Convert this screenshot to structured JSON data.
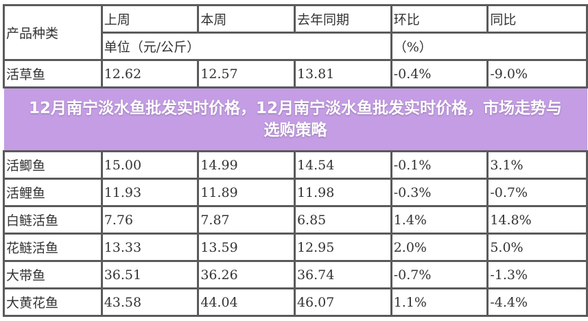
{
  "header": {
    "product": "产品种类",
    "columns": [
      "上周",
      "本周",
      "去年同期",
      "环比",
      "同比"
    ],
    "unit_price": "单位（元/公斤）",
    "unit_pct": "（%）"
  },
  "rows": [
    {
      "name": "活草鱼",
      "values": [
        "12.62",
        "12.57",
        "13.81",
        "-0.4%",
        "-9.0%"
      ]
    },
    {
      "name": "活鲫鱼",
      "values": [
        "15.00",
        "14.99",
        "14.54",
        "-0.1%",
        "3.1%"
      ]
    },
    {
      "name": "活鲤鱼",
      "values": [
        "11.93",
        "11.89",
        "11.98",
        "-0.3%",
        "-0.7%"
      ]
    },
    {
      "name": "白鲢活鱼",
      "values": [
        "7.76",
        "7.87",
        "6.85",
        "1.4%",
        "14.8%"
      ]
    },
    {
      "name": "花鲢活鱼",
      "values": [
        "13.33",
        "13.59",
        "12.95",
        "2.0%",
        "5.0%"
      ]
    },
    {
      "name": "大带鱼",
      "values": [
        "36.51",
        "36.26",
        "36.74",
        "-0.7%",
        "-1.3%"
      ]
    },
    {
      "name": "大黄花鱼",
      "values": [
        "43.58",
        "44.04",
        "46.07",
        "1.1%",
        "-4.4%"
      ]
    }
  ],
  "overlay_title": "12月南宁淡水鱼批发实时价格，12月南宁淡水鱼批发实时价格，市场走势与选购策略",
  "colors": {
    "overlay": "#b482dc",
    "border": "#5a5a5a"
  }
}
